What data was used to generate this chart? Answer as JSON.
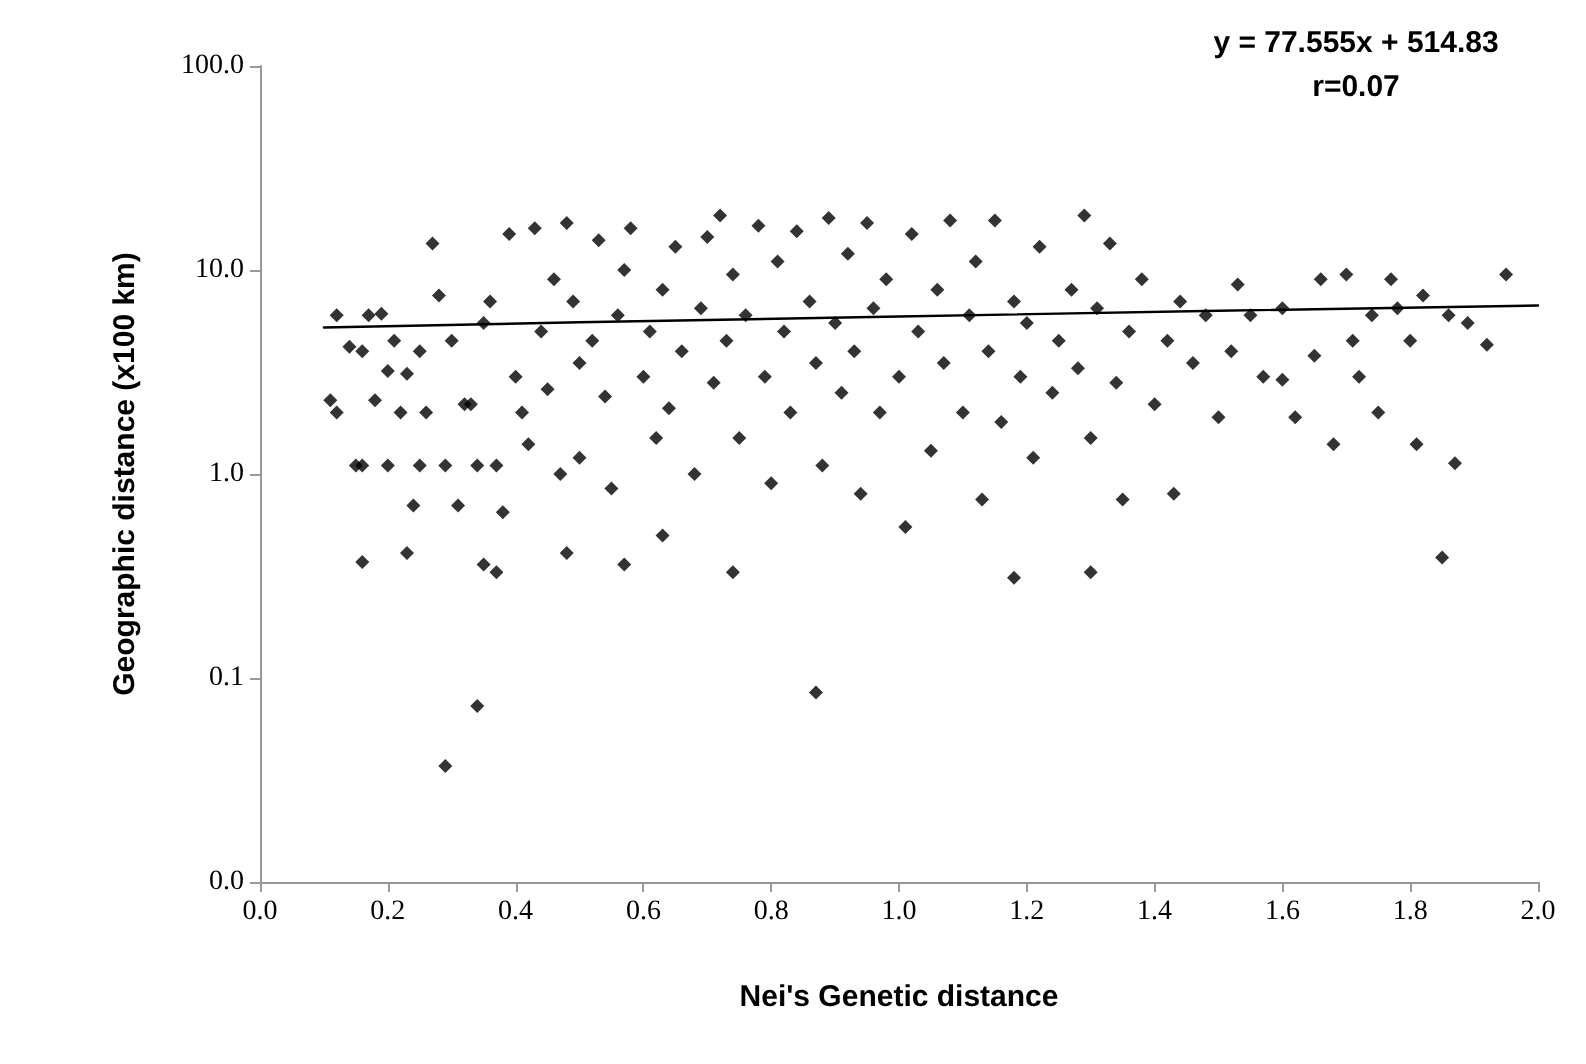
{
  "chart_data": {
    "type": "scatter",
    "xlabel": "Nei's Genetic distance",
    "ylabel": "Geographic distance (x100 km)",
    "annotations": [
      "y = 77.555x + 514.83",
      "r=0.07"
    ],
    "log": "y",
    "grid": false,
    "xlim": [
      0,
      2
    ],
    "xticks": [
      {
        "value": 0,
        "label": "0.0"
      },
      {
        "value": 0.2,
        "label": "0.2"
      },
      {
        "value": 0.4,
        "label": "0.4"
      },
      {
        "value": 0.6,
        "label": "0.6"
      },
      {
        "value": 0.8,
        "label": "0.8"
      },
      {
        "value": 1,
        "label": "1.0"
      },
      {
        "value": 1.2,
        "label": "1.2"
      },
      {
        "value": 1.4,
        "label": "1.4"
      },
      {
        "value": 1.6,
        "label": "1.6"
      },
      {
        "value": 1.8,
        "label": "1.8"
      },
      {
        "value": 2,
        "label": "2.0"
      }
    ],
    "ylim": [
      0.01,
      100
    ],
    "yticks": [
      {
        "value": 0.01,
        "label": "0.0"
      },
      {
        "value": 0.1,
        "label": "0.1"
      },
      {
        "value": 1,
        "label": "1.0"
      },
      {
        "value": 10,
        "label": "10.0"
      },
      {
        "value": 100,
        "label": "100.0"
      }
    ],
    "series": [
      {
        "marker": "diamond",
        "color": "#000000",
        "x": [
          0.11,
          0.12,
          0.12,
          0.14,
          0.15,
          0.16,
          0.16,
          0.17,
          0.18,
          0.19,
          0.2,
          0.2,
          0.21,
          0.22,
          0.23,
          0.24,
          0.25,
          0.25,
          0.26,
          0.27,
          0.28,
          0.29,
          0.3,
          0.31,
          0.32,
          0.33,
          0.34,
          0.35,
          0.36,
          0.37,
          0.38,
          0.39,
          0.4,
          0.41,
          0.42,
          0.43,
          0.44,
          0.45,
          0.46,
          0.47,
          0.48,
          0.49,
          0.5,
          0.5,
          0.52,
          0.53,
          0.54,
          0.55,
          0.56,
          0.57,
          0.58,
          0.6,
          0.61,
          0.62,
          0.63,
          0.64,
          0.65,
          0.66,
          0.68,
          0.69,
          0.7,
          0.71,
          0.72,
          0.73,
          0.74,
          0.75,
          0.76,
          0.78,
          0.79,
          0.8,
          0.81,
          0.82,
          0.83,
          0.84,
          0.86,
          0.87,
          0.88,
          0.89,
          0.9,
          0.91,
          0.92,
          0.93,
          0.94,
          0.95,
          0.96,
          0.97,
          0.98,
          1.0,
          1.01,
          1.02,
          1.03,
          1.05,
          1.06,
          1.07,
          1.08,
          1.1,
          1.11,
          1.12,
          1.13,
          1.14,
          1.15,
          1.16,
          1.18,
          1.19,
          1.2,
          1.21,
          1.22,
          1.24,
          1.25,
          1.27,
          1.28,
          1.29,
          1.3,
          1.31,
          1.33,
          1.34,
          1.35,
          1.36,
          1.38,
          1.4,
          1.42,
          1.43,
          1.44,
          1.46,
          1.48,
          1.5,
          1.52,
          1.53,
          1.55,
          1.57,
          1.6,
          1.6,
          1.62,
          1.65,
          1.66,
          1.68,
          1.7,
          1.71,
          1.72,
          1.74,
          1.75,
          1.77,
          1.78,
          1.8,
          1.81,
          1.82,
          1.86,
          1.89,
          1.92,
          1.95,
          0.16,
          0.23,
          0.35,
          0.37,
          0.48,
          0.57,
          0.63,
          0.74,
          1.18,
          1.3,
          1.85,
          1.87,
          0.29,
          0.34,
          0.87
        ],
        "values": [
          2.3,
          2.0,
          6.0,
          4.2,
          1.1,
          1.1,
          4.0,
          6.0,
          2.3,
          6.1,
          3.2,
          1.1,
          4.5,
          2.0,
          3.1,
          0.7,
          4.0,
          1.1,
          2.0,
          13.5,
          7.5,
          1.1,
          4.5,
          0.7,
          2.2,
          2.2,
          1.1,
          5.5,
          7.0,
          1.1,
          0.65,
          15.0,
          3.0,
          2.0,
          1.4,
          16.0,
          5.0,
          2.6,
          9.0,
          1.0,
          17.0,
          7.0,
          3.5,
          1.2,
          4.5,
          14.0,
          2.4,
          0.85,
          6.0,
          10.0,
          16.0,
          3.0,
          5.0,
          1.5,
          8.0,
          2.1,
          13.0,
          4.0,
          1.0,
          6.5,
          14.5,
          2.8,
          18.5,
          4.5,
          9.5,
          1.5,
          6.0,
          16.5,
          3.0,
          0.9,
          11.0,
          5.0,
          2.0,
          15.5,
          7.0,
          3.5,
          1.1,
          18.0,
          5.5,
          2.5,
          12.0,
          4.0,
          0.8,
          17.0,
          6.5,
          2.0,
          9.0,
          3.0,
          0.55,
          15.0,
          5.0,
          1.3,
          8.0,
          3.5,
          17.5,
          2.0,
          6.0,
          11.0,
          0.75,
          4.0,
          17.5,
          1.8,
          7.0,
          3.0,
          5.5,
          1.2,
          13.0,
          2.5,
          4.5,
          8.0,
          3.3,
          18.5,
          1.5,
          6.5,
          13.5,
          2.8,
          0.75,
          5.0,
          9.0,
          2.2,
          4.5,
          0.8,
          7.0,
          3.5,
          6.0,
          1.9,
          4.0,
          8.5,
          6.0,
          3.0,
          2.9,
          6.5,
          1.9,
          3.8,
          9.0,
          1.4,
          9.5,
          4.5,
          3.0,
          6.0,
          2.0,
          9.0,
          6.5,
          4.5,
          1.4,
          7.5,
          6.0,
          5.5,
          4.3,
          9.5,
          0.37,
          0.41,
          0.36,
          0.33,
          0.41,
          0.36,
          0.5,
          0.33,
          0.31,
          0.33,
          0.39,
          1.13,
          0.037,
          0.073,
          0.085
        ]
      },
      {
        "type": "line",
        "marker": "none",
        "line_style": "solid",
        "color": "#000000",
        "x": [
          0.1,
          0.5,
          1.0,
          1.5,
          2.0
        ],
        "values": [
          5.23,
          5.54,
          5.92,
          6.31,
          6.7
        ]
      }
    ]
  }
}
